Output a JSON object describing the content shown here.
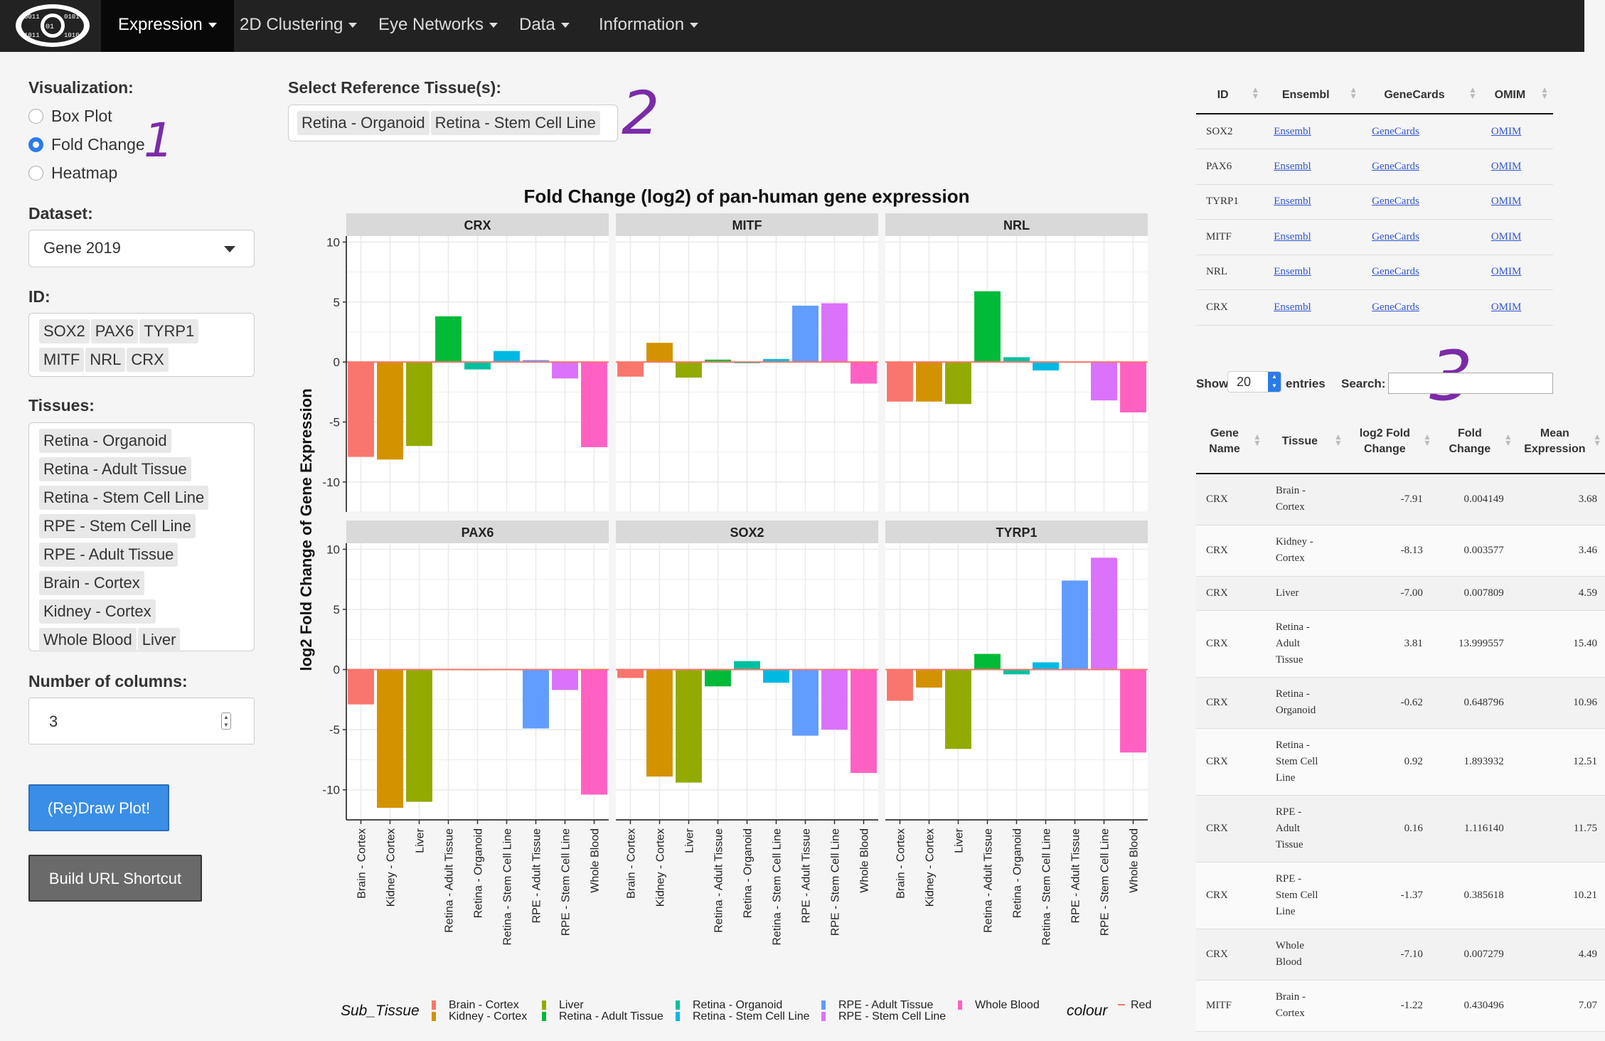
{
  "nav": {
    "items": [
      "Expression",
      "2D Clustering",
      "Eye Networks",
      "Data",
      "Information"
    ]
  },
  "sidebar": {
    "visualization_label": "Visualization:",
    "viz_options": [
      "Box Plot",
      "Fold Change",
      "Heatmap"
    ],
    "viz_selected": "Fold Change",
    "dataset_label": "Dataset:",
    "dataset_value": "Gene 2019",
    "id_label": "ID:",
    "ids": [
      "SOX2",
      "PAX6",
      "TYRP1",
      "MITF",
      "NRL",
      "CRX"
    ],
    "tissues_label": "Tissues:",
    "tissues": [
      "Retina - Organoid",
      "Retina - Adult Tissue",
      "Retina - Stem Cell Line",
      "RPE - Stem Cell Line",
      "RPE - Adult Tissue",
      "Brain - Cortex",
      "Kidney - Cortex",
      "Whole Blood",
      "Liver"
    ],
    "ncol_label": "Number of columns:",
    "ncol_value": "3",
    "draw_button": "(Re)Draw Plot!",
    "url_button": "Build URL Shortcut"
  },
  "reference": {
    "label": "Select Reference Tissue(s):",
    "chips": [
      "Retina - Organoid",
      "Retina - Stem Cell Line"
    ]
  },
  "annotations": [
    "1",
    "2",
    "3"
  ],
  "chart_data": {
    "type": "bar",
    "title": "Fold Change (log2) of pan-human gene expression",
    "ylabel": "log2 Fold Change of Gene Expression",
    "ylim": [
      -12.5,
      10.5
    ],
    "yticks": [
      10,
      5,
      0,
      -5,
      -10
    ],
    "categories": [
      "Brain - Cortex",
      "Kidney - Cortex",
      "Liver",
      "Retina - Adult Tissue",
      "Retina - Organoid",
      "Retina - Stem Cell Line",
      "RPE - Adult Tissue",
      "RPE - Stem Cell Line",
      "Whole Blood"
    ],
    "colors": [
      "#F8766D",
      "#D39200",
      "#93AA00",
      "#00BA38",
      "#00C19F",
      "#00B9E3",
      "#619CFF",
      "#DB72FB",
      "#FF61C3"
    ],
    "facets": [
      {
        "name": "CRX",
        "values": [
          -7.91,
          -8.13,
          -7.0,
          3.81,
          -0.62,
          0.92,
          0.16,
          -1.37,
          -7.1
        ]
      },
      {
        "name": "MITF",
        "values": [
          -1.22,
          1.6,
          -1.3,
          0.2,
          -0.1,
          0.25,
          4.7,
          4.9,
          -1.8
        ]
      },
      {
        "name": "NRL",
        "values": [
          -3.3,
          -3.3,
          -3.5,
          5.9,
          0.4,
          -0.7,
          -0.05,
          -3.2,
          -4.2
        ]
      },
      {
        "name": "PAX6",
        "values": [
          -2.9,
          -11.5,
          -11.0,
          0.05,
          -0.05,
          0.05,
          -4.9,
          -1.7,
          -10.4
        ]
      },
      {
        "name": "SOX2",
        "values": [
          -0.7,
          -8.9,
          -9.4,
          -1.4,
          0.7,
          -1.1,
          -5.5,
          -5.0,
          -8.6
        ]
      },
      {
        "name": "TYRP1",
        "values": [
          -2.6,
          -1.5,
          -6.6,
          1.3,
          -0.4,
          0.6,
          7.4,
          9.3,
          -6.9
        ]
      }
    ],
    "legend": {
      "title": "Sub_Tissue",
      "colour_title": "colour",
      "colour_item": "Red"
    }
  },
  "id_table": {
    "headers": [
      "ID",
      "Ensembl",
      "GeneCards",
      "OMIM"
    ],
    "rows": [
      [
        "SOX2",
        "Ensembl",
        "GeneCards",
        "OMIM"
      ],
      [
        "PAX6",
        "Ensembl",
        "GeneCards",
        "OMIM"
      ],
      [
        "TYRP1",
        "Ensembl",
        "GeneCards",
        "OMIM"
      ],
      [
        "MITF",
        "Ensembl",
        "GeneCards",
        "OMIM"
      ],
      [
        "NRL",
        "Ensembl",
        "GeneCards",
        "OMIM"
      ],
      [
        "CRX",
        "Ensembl",
        "GeneCards",
        "OMIM"
      ]
    ]
  },
  "dt": {
    "show_label": "Show",
    "show_value": "20",
    "entries_label": "entries",
    "search_label": "Search:",
    "search_value": ""
  },
  "main_table": {
    "headers": [
      "Gene Name",
      "Tissue",
      "log2 Fold Change",
      "Fold Change",
      "Mean Expression"
    ],
    "rows": [
      [
        "CRX",
        "Brain - Cortex",
        "-7.91",
        "0.004149",
        "3.68"
      ],
      [
        "CRX",
        "Kidney - Cortex",
        "-8.13",
        "0.003577",
        "3.46"
      ],
      [
        "CRX",
        "Liver",
        "-7.00",
        "0.007809",
        "4.59"
      ],
      [
        "CRX",
        "Retina - Adult Tissue",
        "3.81",
        "13.999557",
        "15.40"
      ],
      [
        "CRX",
        "Retina - Organoid",
        "-0.62",
        "0.648796",
        "10.96"
      ],
      [
        "CRX",
        "Retina - Stem Cell Line",
        "0.92",
        "1.893932",
        "12.51"
      ],
      [
        "CRX",
        "RPE - Adult Tissue",
        "0.16",
        "1.116140",
        "11.75"
      ],
      [
        "CRX",
        "RPE - Stem Cell Line",
        "-1.37",
        "0.385618",
        "10.21"
      ],
      [
        "CRX",
        "Whole Blood",
        "-7.10",
        "0.007279",
        "4.49"
      ],
      [
        "MITF",
        "Brain - Cortex",
        "-1.22",
        "0.430496",
        "7.07"
      ]
    ]
  }
}
